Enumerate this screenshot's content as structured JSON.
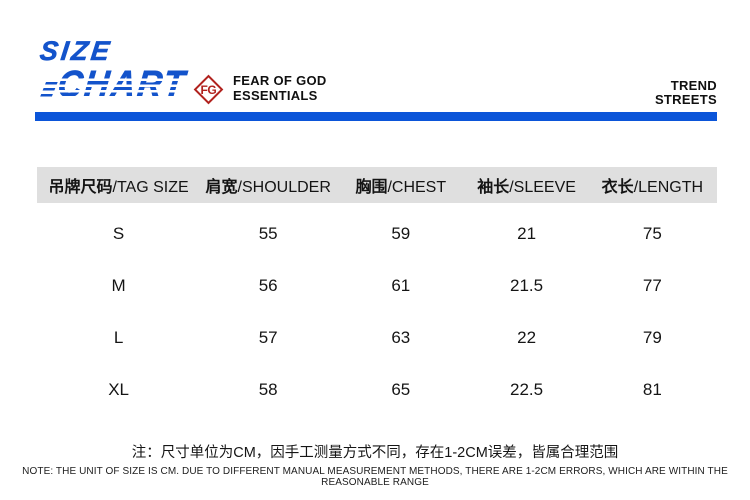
{
  "header": {
    "title_line1": "SIZE",
    "title_line2": "CHART",
    "fg_monogram": "FG",
    "brand_line1": "FEAR OF GOD",
    "brand_line2": "ESSENTIALS",
    "right_line1": "TREND",
    "right_line2": "STREETS"
  },
  "colors": {
    "title_blue": "#1353cb",
    "accent_blue": "#0b55d9",
    "brand_red": "#b1221e",
    "table_header_bg": "#dfdfdf",
    "text_color": "#111111"
  },
  "chart_data": {
    "type": "table",
    "title": "SIZE CHART",
    "unit": "CM",
    "columns": [
      "吊牌尺码/TAG SIZE",
      "肩宽/SHOULDER",
      "胸围/CHEST",
      "袖长/SLEEVE",
      "衣长/LENGTH"
    ],
    "header_parts": [
      {
        "zh": "吊牌尺码",
        "en": "/TAG SIZE"
      },
      {
        "zh": "肩宽",
        "en": "/SHOULDER"
      },
      {
        "zh": "胸围",
        "en": "/CHEST"
      },
      {
        "zh": "袖长",
        "en": "/SLEEVE"
      },
      {
        "zh": "衣长",
        "en": "/LENGTH"
      }
    ],
    "rows": [
      [
        "S",
        "55",
        "59",
        "21",
        "75"
      ],
      [
        "M",
        "56",
        "61",
        "21.5",
        "77"
      ],
      [
        "L",
        "57",
        "63",
        "22",
        "79"
      ],
      [
        "XL",
        "58",
        "65",
        "22.5",
        "81"
      ]
    ]
  },
  "notes": {
    "zh": "注：尺寸单位为CM，因手工测量方式不同，存在1-2CM误差，皆属合理范围",
    "en": "NOTE: THE UNIT OF SIZE IS CM. DUE TO DIFFERENT MANUAL MEASUREMENT METHODS, THERE ARE 1-2CM ERRORS, WHICH ARE WITHIN THE REASONABLE RANGE"
  }
}
